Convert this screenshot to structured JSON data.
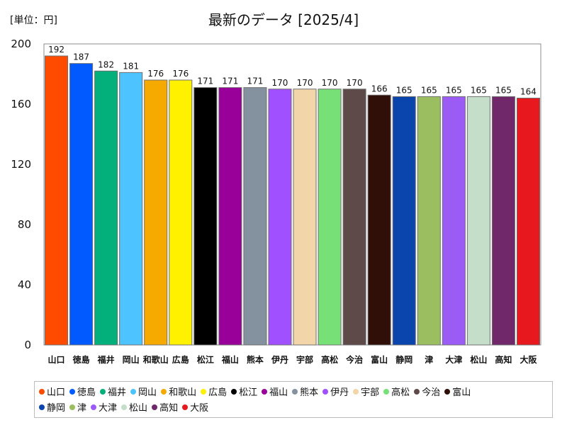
{
  "header": {
    "unit": "[単位：円]",
    "title": "最新のデータ [2025/4]"
  },
  "chart_data": {
    "type": "bar",
    "title": "最新のデータ [2025/4]",
    "unit_label": "[単位：円]",
    "xlabel": "",
    "ylabel": "",
    "ylim": [
      0,
      200
    ],
    "yticks": [
      0,
      40,
      80,
      120,
      160,
      200
    ],
    "grid": false,
    "legend_position": "bottom",
    "categories": [
      "山口",
      "徳島",
      "福井",
      "岡山",
      "和歌山",
      "広島",
      "松江",
      "福山",
      "熊本",
      "伊丹",
      "宇部",
      "高松",
      "今治",
      "富山",
      "静岡",
      "津",
      "大津",
      "松山",
      "高知",
      "大阪"
    ],
    "values": [
      192,
      187,
      182,
      181,
      176,
      176,
      171,
      171,
      171,
      170,
      170,
      170,
      170,
      166,
      165,
      165,
      165,
      165,
      165,
      164
    ],
    "colors": [
      "#ff4b00",
      "#005aff",
      "#03af7a",
      "#4dc4ff",
      "#f6aa00",
      "#fff100",
      "#000000",
      "#990099",
      "#84919e",
      "#a050ff",
      "#f2d5a8",
      "#77e177",
      "#5f4a4a",
      "#2f0f08",
      "#0a44ad",
      "#9bbe60",
      "#9a5cf5",
      "#c4dec9",
      "#70286b",
      "#e8191e"
    ]
  }
}
